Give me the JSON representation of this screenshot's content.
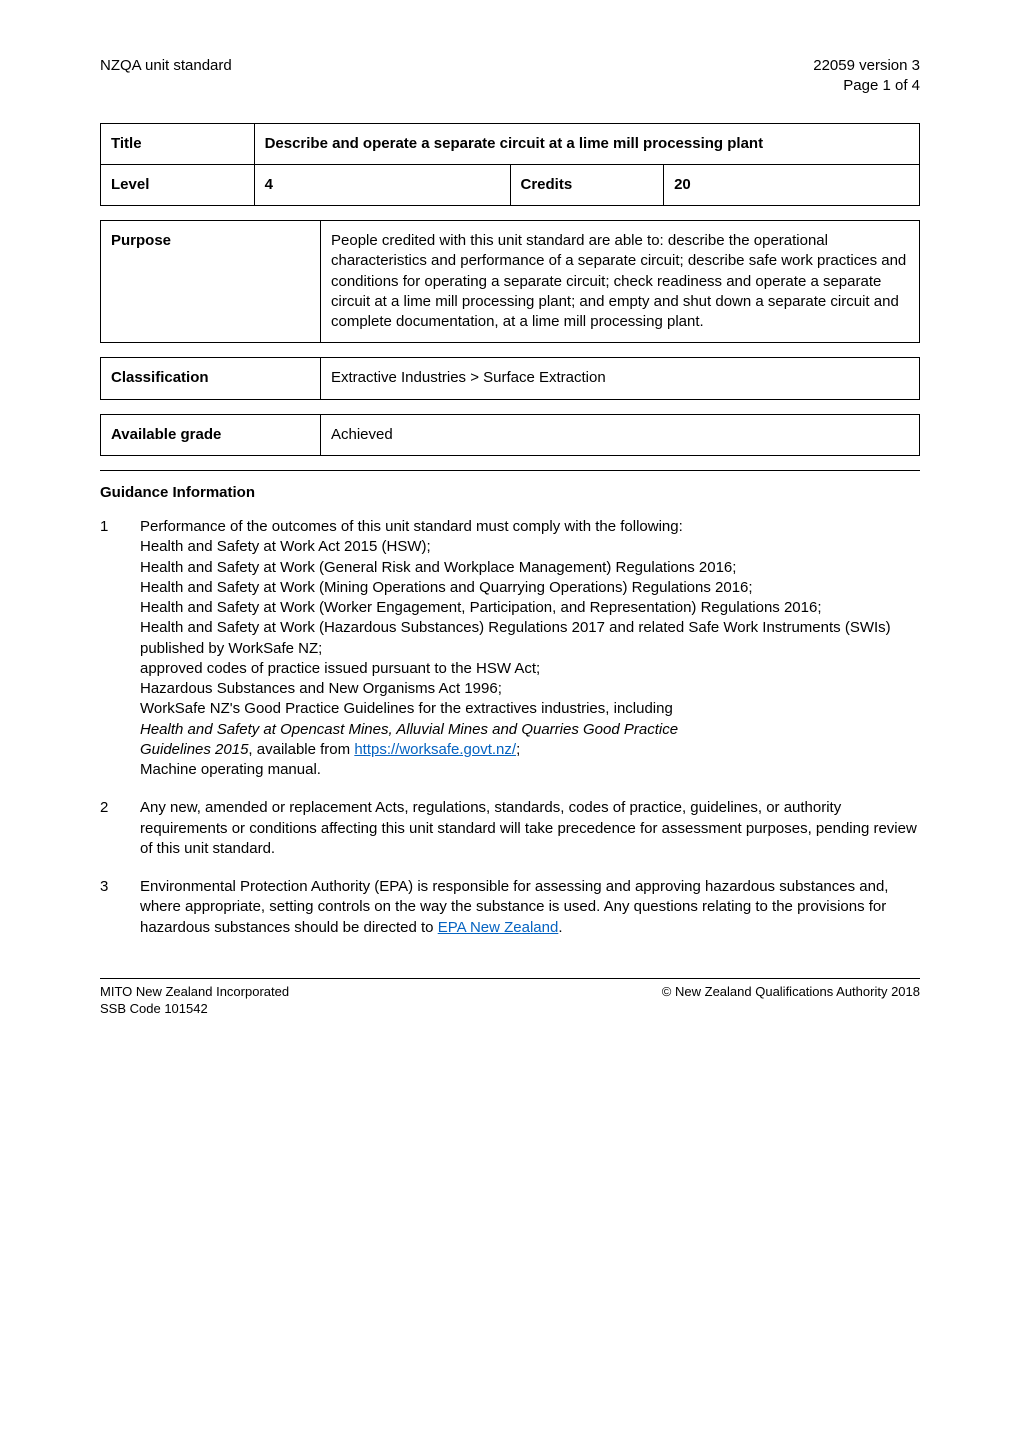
{
  "header": {
    "left": "NZQA unit standard",
    "right_line1": "22059 version 3",
    "right_line2": "Page 1 of 4"
  },
  "title_table": {
    "title_label": "Title",
    "title_value": "Describe and operate a separate circuit at a lime mill processing plant",
    "level_label": "Level",
    "level_value": "4",
    "credits_label": "Credits",
    "credits_value": "20"
  },
  "purpose_table": {
    "label": "Purpose",
    "value": "People credited with this unit standard are able to: describe the operational characteristics and performance of a separate circuit; describe safe work practices and conditions for operating a separate circuit; check readiness and operate a separate circuit at a lime mill processing plant; and empty and shut down a separate circuit and complete documentation, at a lime mill processing plant."
  },
  "classification_table": {
    "label": "Classification",
    "value": "Extractive Industries > Surface Extraction"
  },
  "grade_table": {
    "label": "Available grade",
    "value": "Achieved"
  },
  "guidance_heading": "Guidance Information",
  "guidance": [
    {
      "num": "1",
      "lines": [
        {
          "t": "Performance of the outcomes of this unit standard must comply with the following:"
        },
        {
          "t": "Health and Safety at Work Act 2015 (HSW);"
        },
        {
          "t": "Health and Safety at Work (General Risk and Workplace Management) Regulations 2016;"
        },
        {
          "t": "Health and Safety at Work (Mining Operations and Quarrying Operations) Regulations 2016;"
        },
        {
          "t": "Health and Safety at Work (Worker Engagement, Participation, and Representation) Regulations 2016;"
        },
        {
          "t": "Health and Safety at Work (Hazardous Substances) Regulations 2017 and related Safe Work Instruments (SWIs) published by WorkSafe NZ;"
        },
        {
          "t": "approved codes of practice issued pursuant to the HSW Act;"
        },
        {
          "t": "Hazardous Substances and New Organisms Act 1996;"
        },
        {
          "t": "WorkSafe NZ's Good Practice Guidelines for the extractives industries, including"
        },
        {
          "italic": true,
          "t": "Health and Safety at Opencast Mines, Alluvial Mines and Quarries Good Practice"
        },
        {
          "composite": true,
          "parts": [
            {
              "italic": true,
              "t": "Guidelines 2015"
            },
            {
              "t": ", available from "
            },
            {
              "link": true,
              "t": "https://worksafe.govt.nz/"
            },
            {
              "t": ";"
            }
          ]
        },
        {
          "t": "Machine operating manual."
        }
      ]
    },
    {
      "num": "2",
      "lines": [
        {
          "t": "Any new, amended or replacement Acts, regulations, standards, codes of practice, guidelines, or authority requirements or conditions affecting this unit standard will take precedence for assessment purposes, pending review of this unit standard."
        }
      ]
    },
    {
      "num": "3",
      "lines": [
        {
          "composite": true,
          "parts": [
            {
              "t": "Environmental Protection Authority (EPA) is responsible for assessing and approving hazardous substances and, where appropriate, setting controls on the way the substance is used.  Any questions relating to the provisions for hazardous substances should be directed to "
            },
            {
              "link": true,
              "t": "EPA New Zealand"
            },
            {
              "t": "."
            }
          ]
        }
      ]
    }
  ],
  "footer": {
    "left_line1": "MITO New Zealand Incorporated",
    "left_line2": "SSB Code 101542",
    "right": "New Zealand Qualifications Authority 2018",
    "copyright_symbol": "©"
  },
  "colors": {
    "link": "#0563c1",
    "text": "#000000",
    "background": "#ffffff",
    "border": "#000000"
  }
}
